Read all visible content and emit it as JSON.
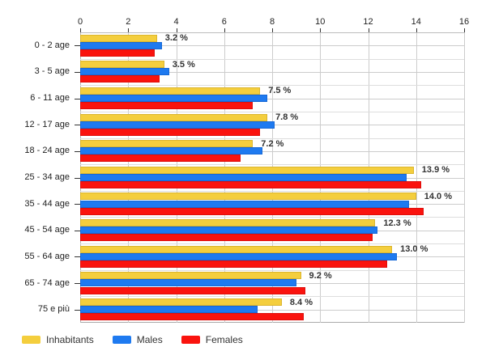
{
  "chart_data": {
    "type": "bar",
    "orientation": "horizontal",
    "title": "",
    "categories": [
      "0 - 2 age",
      "3 - 5 age",
      "6 - 11 age",
      "12 - 17 age",
      "18 - 24 age",
      "25 - 34 age",
      "35 - 44 age",
      "45 - 54 age",
      "55 - 64 age",
      "65 - 74 age",
      "75 e più"
    ],
    "series": [
      {
        "name": "Inhabitants",
        "color": "#F4CE3D",
        "border_color": "#DBB52E",
        "values": [
          3.2,
          3.5,
          7.5,
          7.8,
          7.2,
          13.9,
          14.0,
          12.3,
          13.0,
          9.2,
          8.4
        ]
      },
      {
        "name": "Males",
        "color": "#1E7AF0",
        "border_color": "#1668D6",
        "values": [
          3.4,
          3.7,
          7.8,
          8.1,
          7.6,
          13.6,
          13.7,
          12.4,
          13.2,
          9.0,
          7.4
        ]
      },
      {
        "name": "Females",
        "color": "#FA130E",
        "border_color": "#DE0E0B",
        "values": [
          3.1,
          3.3,
          7.2,
          7.5,
          6.7,
          14.2,
          14.3,
          12.2,
          12.8,
          9.4,
          9.3
        ]
      }
    ],
    "value_labels": [
      "3.2 %",
      "3.5 %",
      "7.5 %",
      "7.8 %",
      "7.2 %",
      "13.9 %",
      "14.0 %",
      "12.3 %",
      "13.0 %",
      "9.2 %",
      "8.4 %"
    ],
    "value_labels_attached_to": "Inhabitants",
    "xlim": [
      0,
      16
    ],
    "x_ticks": [
      "0",
      "2",
      "4",
      "6",
      "8",
      "10",
      "12",
      "14",
      "16"
    ],
    "grid": true,
    "legend_position": "bottom-left",
    "background_color": "#ffffff",
    "gridline_color": "#cccccc"
  }
}
